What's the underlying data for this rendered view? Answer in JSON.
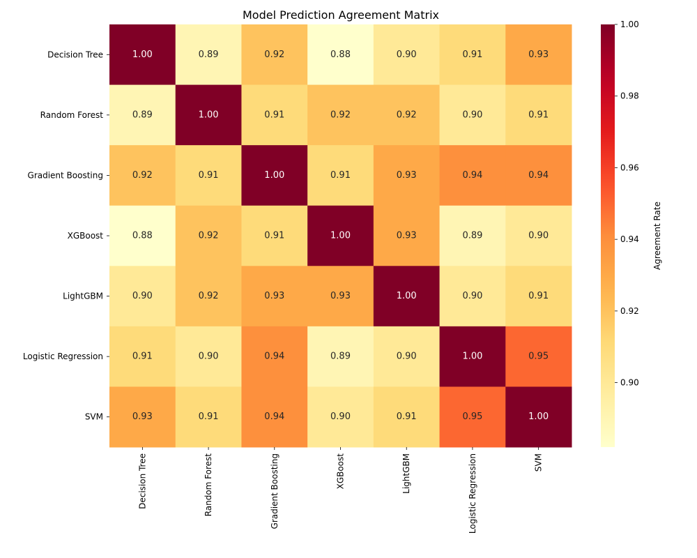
{
  "chart_data": {
    "type": "heatmap",
    "title": "Model Prediction Agreement Matrix",
    "rows": [
      "Decision Tree",
      "Random Forest",
      "Gradient Boosting",
      "XGBoost",
      "LightGBM",
      "Logistic Regression",
      "SVM"
    ],
    "columns": [
      "Decision Tree",
      "Random Forest",
      "Gradient Boosting",
      "XGBoost",
      "LightGBM",
      "Logistic Regression",
      "SVM"
    ],
    "values": [
      [
        1.0,
        0.89,
        0.92,
        0.88,
        0.9,
        0.91,
        0.93
      ],
      [
        0.89,
        1.0,
        0.91,
        0.92,
        0.92,
        0.9,
        0.91
      ],
      [
        0.92,
        0.91,
        1.0,
        0.91,
        0.93,
        0.94,
        0.94
      ],
      [
        0.88,
        0.92,
        0.91,
        1.0,
        0.93,
        0.89,
        0.9
      ],
      [
        0.9,
        0.92,
        0.93,
        0.93,
        1.0,
        0.9,
        0.91
      ],
      [
        0.91,
        0.9,
        0.94,
        0.89,
        0.9,
        1.0,
        0.95
      ],
      [
        0.93,
        0.91,
        0.94,
        0.9,
        0.91,
        0.95,
        1.0
      ]
    ],
    "value_format": "0.00",
    "colormap": "YlOrRd",
    "color_range": [
      0.882,
      1.0
    ],
    "colorbar": {
      "label": "Agreement Rate",
      "ticks": [
        0.9,
        0.92,
        0.94,
        0.96,
        0.98,
        1.0
      ],
      "tick_labels": [
        "0.90",
        "0.92",
        "0.94",
        "0.96",
        "0.98",
        "1.00"
      ]
    },
    "grid": false
  }
}
